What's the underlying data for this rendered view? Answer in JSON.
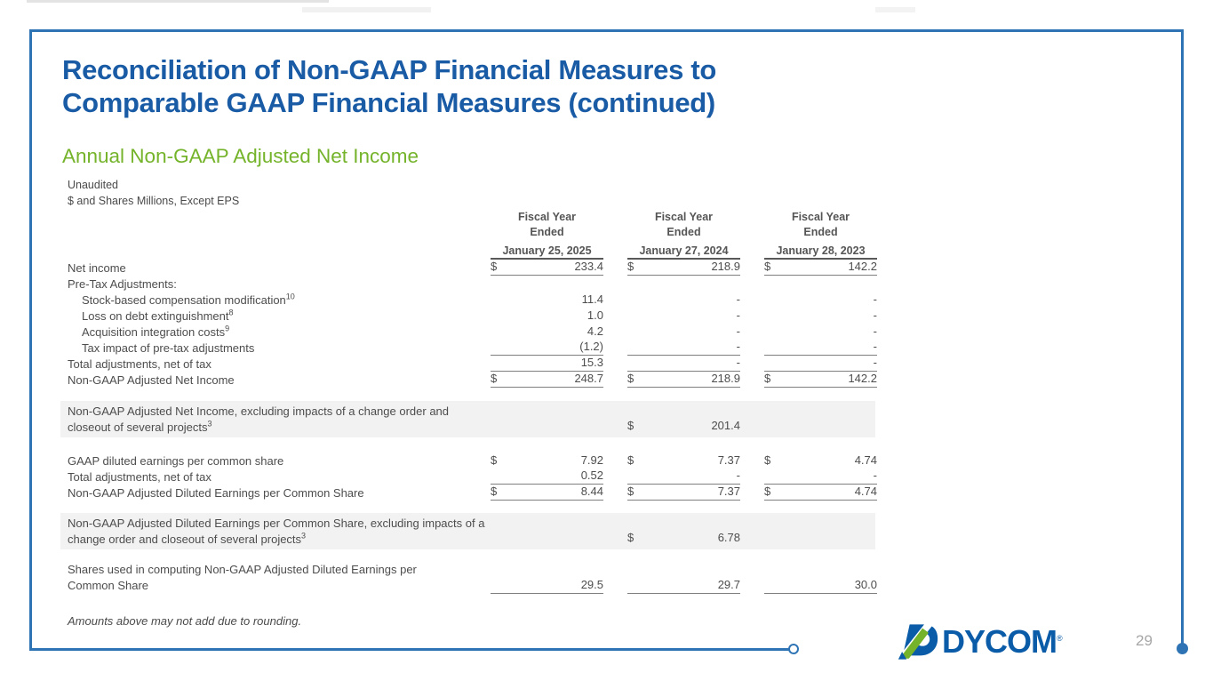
{
  "title": {
    "line1": "Reconciliation of Non-GAAP Financial Measures to",
    "line2": "Comparable GAAP Financial Measures (continued)"
  },
  "subtitle": "Annual Non-GAAP Adjusted Net Income",
  "prenote": {
    "line1": "Unaudited",
    "line2": "$ and Shares Millions, Except EPS"
  },
  "rounding_note": "Amounts above may not add due to rounding.",
  "page_number": "29",
  "logo": {
    "text": "DYCOM",
    "reg": "®",
    "icon": "dycom-mark-icon"
  },
  "colors": {
    "frame_blue": "#2E74B5",
    "title_blue": "#1A5BA5",
    "brand_green": "#74B32A",
    "logo_blue": "#0B5CA8",
    "highlight_gray": "#f2f2f2",
    "page_number_gray": "#A6A6A6"
  },
  "table": {
    "column_headers": [
      {
        "line1": "Fiscal Year",
        "line2": "Ended",
        "date": "January 25, 2025"
      },
      {
        "line1": "Fiscal Year",
        "line2": "Ended",
        "date": "January 27, 2024"
      },
      {
        "line1": "Fiscal Year",
        "line2": "Ended",
        "date": "January 28, 2023"
      }
    ],
    "sectionA": [
      {
        "label": "Net income",
        "cells": [
          {
            "d": true,
            "v": "233.4"
          },
          {
            "d": true,
            "v": "218.9"
          },
          {
            "d": true,
            "v": "142.2"
          }
        ],
        "ul": true
      },
      {
        "label": "Pre-Tax Adjustments:",
        "cells": [
          null,
          null,
          null
        ]
      },
      {
        "label": "Stock-based compensation modification",
        "sup": "10",
        "indent": true,
        "cells": [
          {
            "v": "11.4"
          },
          {
            "v": "-"
          },
          {
            "v": "-"
          }
        ]
      },
      {
        "label": "Loss on debt extinguishment",
        "sup": "8",
        "indent": true,
        "cells": [
          {
            "v": "1.0"
          },
          {
            "v": "-"
          },
          {
            "v": "-"
          }
        ]
      },
      {
        "label": "Acquisition integration costs",
        "sup": "9",
        "indent": true,
        "cells": [
          {
            "v": "4.2"
          },
          {
            "v": "-"
          },
          {
            "v": "-"
          }
        ]
      },
      {
        "label": "Tax impact of pre-tax adjustments",
        "indent": true,
        "cells": [
          {
            "v": "(1.2)"
          },
          {
            "v": "-"
          },
          {
            "v": "-"
          }
        ],
        "ul": true
      },
      {
        "label": "Total adjustments, net of tax",
        "cells": [
          {
            "v": "15.3"
          },
          {
            "v": "-"
          },
          {
            "v": "-"
          }
        ],
        "ul": true
      },
      {
        "label": "Non-GAAP Adjusted Net Income",
        "cells": [
          {
            "d": true,
            "v": "248.7"
          },
          {
            "d": true,
            "v": "218.9"
          },
          {
            "d": true,
            "v": "142.2"
          }
        ],
        "ul": true
      }
    ],
    "highlight1": {
      "label": "Non-GAAP Adjusted Net Income, excluding impacts of a change order and closeout of several projects",
      "sup": "3",
      "dollar": "$",
      "value": "201.4"
    },
    "sectionB": [
      {
        "label": "GAAP diluted earnings per common share",
        "cells": [
          {
            "d": true,
            "v": "7.92"
          },
          {
            "d": true,
            "v": "7.37"
          },
          {
            "d": true,
            "v": "4.74"
          }
        ]
      },
      {
        "label": "Total adjustments, net of tax",
        "cells": [
          {
            "v": "0.52"
          },
          {
            "v": "-"
          },
          {
            "v": "-"
          }
        ],
        "ul": true
      },
      {
        "label": "Non-GAAP Adjusted Diluted Earnings per Common Share",
        "cells": [
          {
            "d": true,
            "v": "8.44"
          },
          {
            "d": true,
            "v": "7.37"
          },
          {
            "d": true,
            "v": "4.74"
          }
        ],
        "ul": true
      }
    ],
    "highlight2": {
      "label": "Non-GAAP Adjusted Diluted Earnings per Common Share, excluding impacts of a change order and closeout of several projects",
      "sup": "3",
      "dollar": "$",
      "value": "6.78"
    },
    "shares_row": {
      "label_line1": "Shares used in computing Non-GAAP Adjusted Diluted Earnings per",
      "label_line2": "Common Share",
      "cells": [
        {
          "v": "29.5"
        },
        {
          "v": "29.7"
        },
        {
          "v": "30.0"
        }
      ],
      "ul": true
    }
  }
}
